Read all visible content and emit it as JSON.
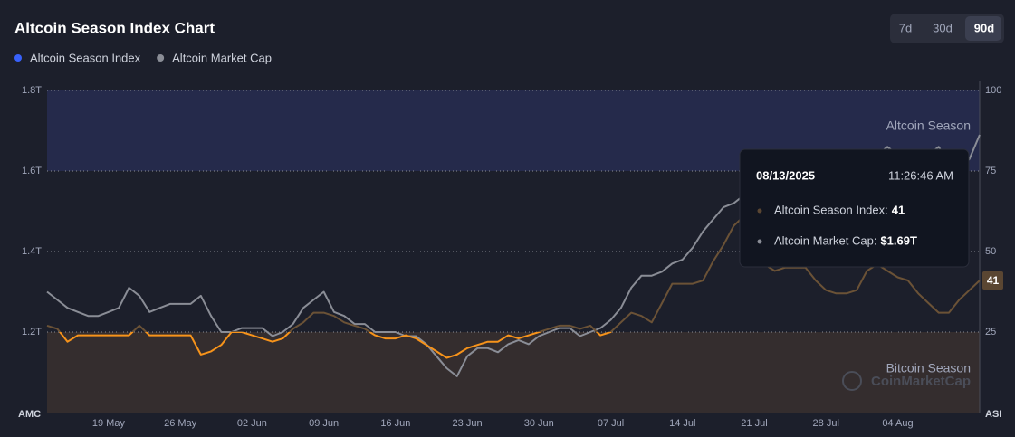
{
  "chart_data": {
    "type": "line",
    "title": "Altcoin Season Index Chart",
    "controls": {
      "ranges": [
        "7d",
        "30d",
        "90d"
      ],
      "active": 2
    },
    "categories": [
      null,
      null,
      null,
      null,
      null,
      null,
      "19 May",
      null,
      null,
      null,
      null,
      null,
      null,
      "26 May",
      null,
      null,
      null,
      null,
      null,
      null,
      "02 Jun",
      null,
      null,
      null,
      null,
      null,
      null,
      "09 Jun",
      null,
      null,
      null,
      null,
      null,
      null,
      "16 Jun",
      null,
      null,
      null,
      null,
      null,
      null,
      "23 Jun",
      null,
      null,
      null,
      null,
      null,
      null,
      "30 Jun",
      null,
      null,
      null,
      null,
      null,
      null,
      "07 Jul",
      null,
      null,
      null,
      null,
      null,
      null,
      "14 Jul",
      null,
      null,
      null,
      null,
      null,
      null,
      "21 Jul",
      null,
      null,
      null,
      null,
      null,
      null,
      "28 Jul",
      null,
      null,
      null,
      null,
      null,
      null,
      "04 Aug",
      null,
      null,
      null,
      null,
      null,
      null,
      null,
      null
    ],
    "series": [
      {
        "name": "Altcoin Season Index",
        "color": "#3861fb",
        "axis": "y2",
        "zone_colors": [
          "#f7931a",
          "#6b5236",
          "#3861fb"
        ],
        "last_label": "41",
        "values": [
          27,
          26,
          22,
          24,
          24,
          24,
          24,
          24,
          24,
          27,
          24,
          24,
          24,
          24,
          24,
          18,
          19,
          21,
          25,
          25,
          24,
          23,
          22,
          23,
          26,
          28,
          31,
          31,
          30,
          28,
          27,
          26,
          24,
          23,
          23,
          24,
          23,
          21,
          19,
          17,
          18,
          20,
          21,
          22,
          22,
          24,
          23,
          24,
          25,
          26,
          27,
          27,
          26,
          27,
          24,
          25,
          28,
          31,
          30,
          28,
          34,
          40,
          40,
          40,
          41,
          47,
          52,
          58,
          61,
          56,
          46,
          44,
          45,
          45,
          45,
          41,
          38,
          37,
          37,
          38,
          44,
          46,
          44,
          42,
          41,
          37,
          34,
          31,
          31,
          35,
          38,
          41
        ]
      },
      {
        "name": "Altcoin Market Cap",
        "color": "#8a8d96",
        "values": [
          1.3,
          1.28,
          1.26,
          1.25,
          1.24,
          1.24,
          1.25,
          1.26,
          1.31,
          1.29,
          1.25,
          1.26,
          1.27,
          1.27,
          1.27,
          1.29,
          1.24,
          1.2,
          1.2,
          1.21,
          1.21,
          1.21,
          1.19,
          1.2,
          1.22,
          1.26,
          1.28,
          1.3,
          1.25,
          1.24,
          1.22,
          1.22,
          1.2,
          1.2,
          1.2,
          1.19,
          1.19,
          1.17,
          1.14,
          1.11,
          1.09,
          1.14,
          1.16,
          1.16,
          1.15,
          1.17,
          1.18,
          1.17,
          1.19,
          1.2,
          1.21,
          1.21,
          1.19,
          1.2,
          1.21,
          1.23,
          1.26,
          1.31,
          1.34,
          1.34,
          1.35,
          1.37,
          1.38,
          1.41,
          1.45,
          1.48,
          1.51,
          1.52,
          1.54,
          1.58,
          1.61,
          1.63,
          1.62,
          1.64,
          1.62,
          1.6,
          1.62,
          1.64,
          1.63,
          1.62,
          1.65,
          1.64,
          1.66,
          1.64,
          1.63,
          1.62,
          1.64,
          1.66,
          1.62,
          1.6,
          1.63,
          1.69
        ]
      }
    ],
    "ylim": [
      1.0,
      1.8
    ],
    "yticks": [
      {
        "value": 1.2,
        "label": "1.2T"
      },
      {
        "value": 1.4,
        "label": "1.4T"
      },
      {
        "value": 1.6,
        "label": "1.6T"
      },
      {
        "value": 1.8,
        "label": "1.8T"
      }
    ],
    "y2lim": [
      0,
      100
    ],
    "y2ticks": [
      25,
      50,
      75,
      100
    ],
    "y_axis_label": "AMC",
    "y2_axis_label": "ASI",
    "grid": true,
    "bands": [
      {
        "label": "Altcoin Season",
        "range": [
          75,
          100
        ],
        "color": "#252a4b"
      },
      {
        "label": "Bitcoin Season",
        "range": [
          0,
          25
        ],
        "color": "#342d2e"
      }
    ],
    "watermark": "CoinMarketCap",
    "tooltip": {
      "date": "08/13/2025",
      "time": "11:26:46 AM",
      "items": [
        {
          "label": "Altcoin Season Index:",
          "value": "41"
        },
        {
          "label": "Altcoin Market Cap:",
          "value": "$1.69T"
        }
      ]
    }
  }
}
